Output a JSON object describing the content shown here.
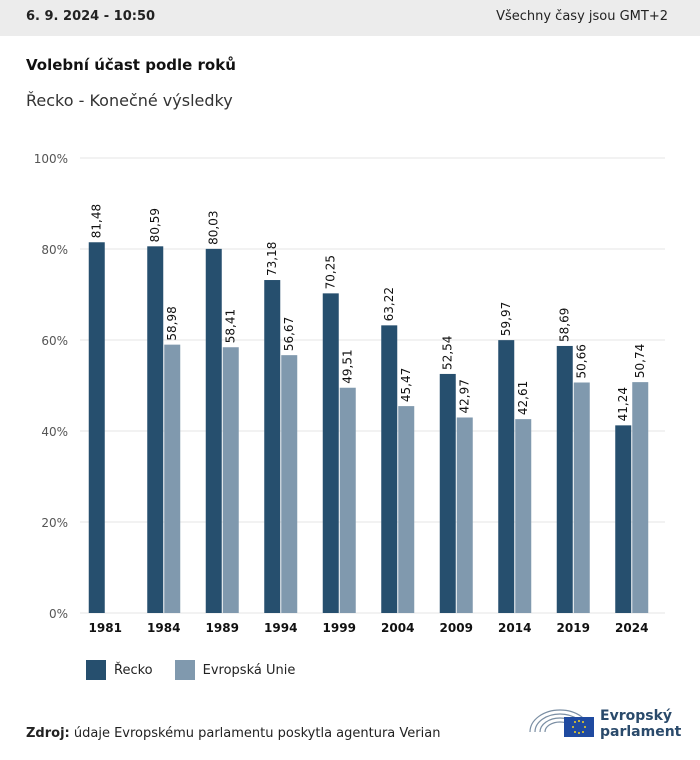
{
  "header": {
    "date": "6. 9. 2024 - 10:50",
    "timezone": "Všechny časy jsou GMT+2"
  },
  "title": "Volební účast podle roků",
  "subtitle": "Řecko - Konečné výsledky",
  "source_label": "Zdroj:",
  "source_text": "údaje Evropskému parlamentu poskytla agentura Verian",
  "logo": {
    "line1": "Evropský",
    "line2": "parlament"
  },
  "colors": {
    "greece": "#264f6e",
    "eu": "#8099ae",
    "grid": "#e6e6e6"
  },
  "chart_data": {
    "type": "bar",
    "categories": [
      "1981",
      "1984",
      "1989",
      "1994",
      "1999",
      "2004",
      "2009",
      "2014",
      "2019",
      "2024"
    ],
    "series": [
      {
        "name": "Řecko",
        "values": [
          81.48,
          80.59,
          80.03,
          73.18,
          70.25,
          63.22,
          52.54,
          59.97,
          58.69,
          41.24
        ],
        "labels": [
          "81,48",
          "80,59",
          "80,03",
          "73,18",
          "70,25",
          "63,22",
          "52,54",
          "59,97",
          "58,69",
          "41,24"
        ]
      },
      {
        "name": "Evropská Unie",
        "values": [
          null,
          58.98,
          58.41,
          56.67,
          49.51,
          45.47,
          42.97,
          42.61,
          50.66,
          50.74
        ],
        "labels": [
          "",
          "58,98",
          "58,41",
          "56,67",
          "49,51",
          "45,47",
          "42,97",
          "42,61",
          "50,66",
          "50,74"
        ]
      }
    ],
    "yticks": [
      "0%",
      "20%",
      "40%",
      "60%",
      "80%",
      "100%"
    ],
    "ylim": [
      0,
      100
    ],
    "grid": true,
    "legend": "bottom-left"
  }
}
